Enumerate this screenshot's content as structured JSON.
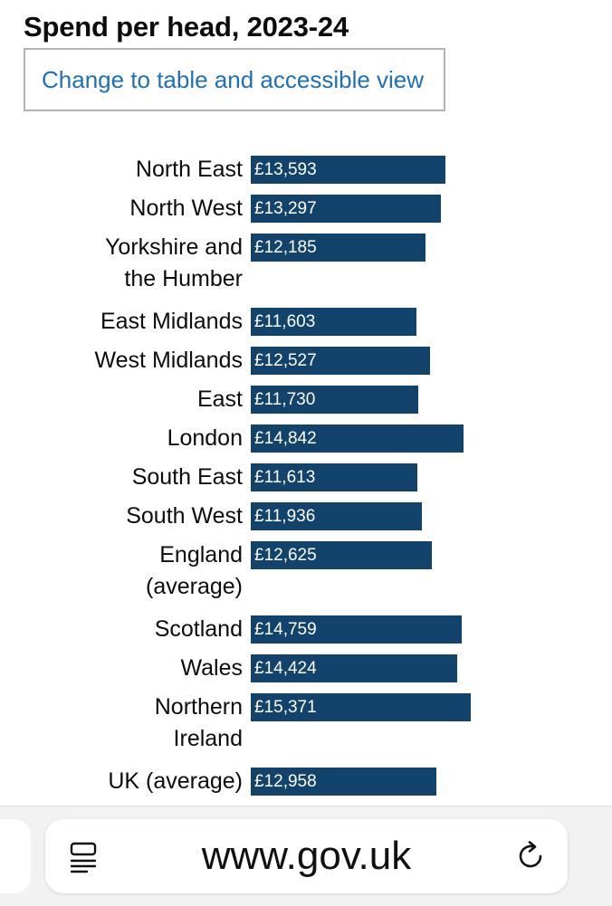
{
  "page": {
    "title": "Spend per head, 2023-24",
    "table_view_label": "Change to table and accessible view"
  },
  "chart_data": {
    "type": "bar",
    "orientation": "horizontal",
    "title": "Spend per head, 2023-24",
    "bar_color": "#12436d",
    "label_color": "#ffffff",
    "categories": [
      "North East",
      "North West",
      "Yorkshire and the Humber",
      "East Midlands",
      "West Midlands",
      "East",
      "London",
      "South East",
      "South West",
      "England (average)",
      "Scotland",
      "Wales",
      "Northern Ireland",
      "UK (average)"
    ],
    "category_lines": [
      [
        "North East"
      ],
      [
        "North West"
      ],
      [
        "Yorkshire and",
        "the Humber"
      ],
      [
        "East Midlands"
      ],
      [
        "West Midlands"
      ],
      [
        "East"
      ],
      [
        "London"
      ],
      [
        "South East"
      ],
      [
        "South West"
      ],
      [
        "England",
        "(average)"
      ],
      [
        "Scotland"
      ],
      [
        "Wales"
      ],
      [
        "Northern",
        "Ireland"
      ],
      [
        "UK (average)"
      ]
    ],
    "values": [
      13593,
      13297,
      12185,
      11603,
      12527,
      11730,
      14842,
      11613,
      11936,
      12625,
      14759,
      14424,
      15371,
      12958
    ],
    "value_labels": [
      "£13,593",
      "£13,297",
      "£12,185",
      "£11,603",
      "£12,527",
      "£11,730",
      "£14,842",
      "£11,613",
      "£11,936",
      "£12,625",
      "£14,759",
      "£14,424",
      "£15,371",
      "£12,958"
    ]
  },
  "browser": {
    "url": "www.gov.uk",
    "reader_icon": "reader-mode-icon",
    "reload_icon": "reload-icon"
  },
  "colors": {
    "link": "#1d70b8",
    "bar": "#12436d",
    "text": "#0b0c0c"
  }
}
